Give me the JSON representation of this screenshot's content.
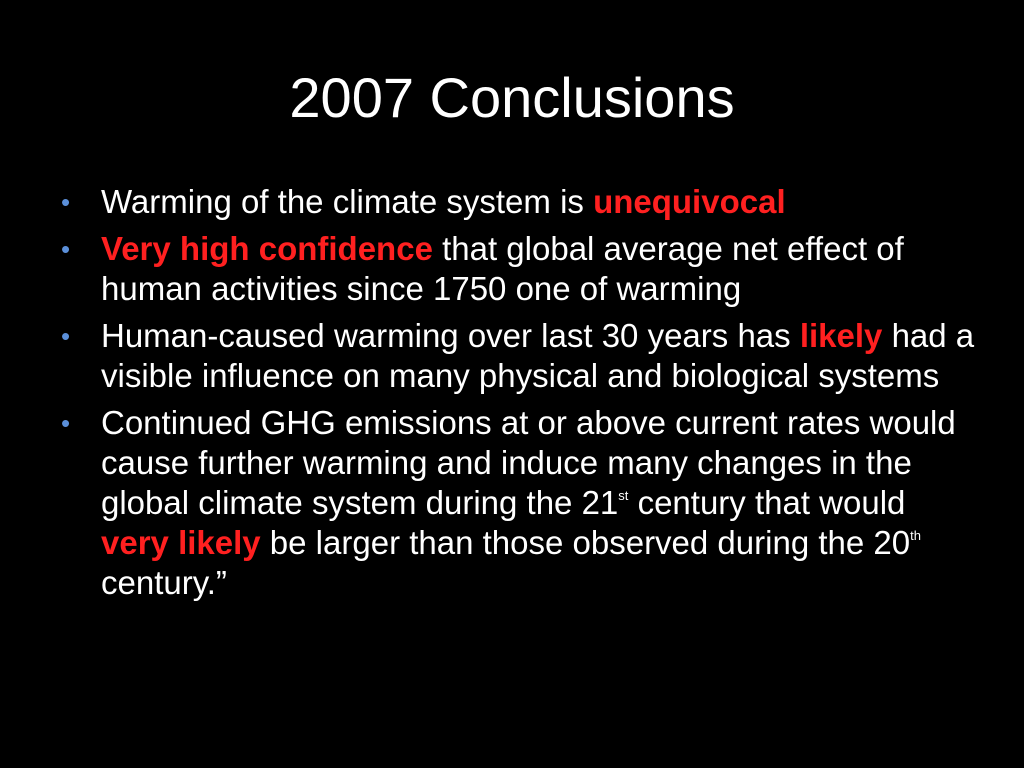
{
  "slide": {
    "title": "2007 Conclusions",
    "bullet_marker": "•",
    "bullets": [
      {
        "parts": [
          {
            "text": "Warming of the climate system is ",
            "style": "plain"
          },
          {
            "text": "unequivocal",
            "style": "emphasis"
          }
        ]
      },
      {
        "parts": [
          {
            "text": "Very high confidence",
            "style": "emphasis"
          },
          {
            "text": " that global average net effect of human activities since 1750 one of warming",
            "style": "plain"
          }
        ]
      },
      {
        "parts": [
          {
            "text": "Human-caused warming over last 30 years has ",
            "style": "plain"
          },
          {
            "text": "likely",
            "style": "emphasis"
          },
          {
            "text": "  had a visible influence on many physical and biological systems",
            "style": "plain"
          }
        ]
      },
      {
        "parts": [
          {
            "text": "Continued GHG emissions at or above current rates would cause further warming and induce many changes in the global climate system during the 21",
            "style": "plain"
          },
          {
            "text": "st",
            "style": "superscript"
          },
          {
            "text": " century that would ",
            "style": "plain"
          },
          {
            "text": "very likely",
            "style": "emphasis"
          },
          {
            "text": " be larger than those observed during the 20",
            "style": "plain"
          },
          {
            "text": "th",
            "style": "superscript"
          },
          {
            "text": " century.”",
            "style": "plain"
          }
        ]
      }
    ]
  },
  "colors": {
    "background": "#000000",
    "text": "#ffffff",
    "emphasis": "#ff2020",
    "bullet": "#5b8fd9"
  }
}
